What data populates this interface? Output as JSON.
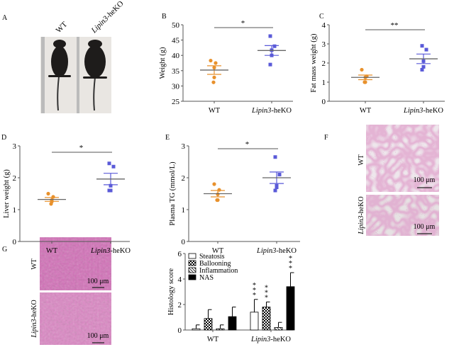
{
  "panel_letters": [
    "A",
    "B",
    "C",
    "D",
    "E",
    "F",
    "G"
  ],
  "groups": [
    "WT",
    "Lipin3-heKO"
  ],
  "colors": {
    "wt": "#e8912c",
    "ko": "#5a5ad8",
    "axis": "#555555",
    "mean": "#666666"
  },
  "panel_a": {
    "labels": [
      "WT",
      "Lipin3-heKO"
    ]
  },
  "panel_f": {
    "row_labels": [
      "WT",
      "Lipin3-heKO"
    ],
    "scale_bar": "100 μm"
  },
  "panel_g": {
    "row_labels": [
      "WT",
      "Lipin3-heKO"
    ],
    "scale_bar": "100 μm"
  },
  "chart_data": [
    {
      "panel": "B",
      "type": "scatter",
      "ylabel": "Weight (g)",
      "ylim": [
        25,
        50
      ],
      "yticks": [
        25,
        30,
        35,
        40,
        45,
        50
      ],
      "categories": [
        "WT",
        "Lipin3-heKO"
      ],
      "significance": "*",
      "series": [
        {
          "name": "WT",
          "values": [
            38.3,
            37.5,
            36.0,
            32.8,
            31.2
          ],
          "mean": 35.2,
          "sem": 1.4
        },
        {
          "name": "Lipin3-heKO",
          "values": [
            46.3,
            43.0,
            41.7,
            40.0,
            37.0
          ],
          "mean": 41.6,
          "sem": 1.6
        }
      ]
    },
    {
      "panel": "C",
      "type": "scatter",
      "ylabel": "Fat mass weight (g)",
      "ylim": [
        0,
        4
      ],
      "yticks": [
        0,
        1,
        2,
        3,
        4
      ],
      "categories": [
        "WT",
        "Lipin3-heKO"
      ],
      "significance": "**",
      "series": [
        {
          "name": "WT",
          "values": [
            1.65,
            1.3,
            1.25,
            1.0,
            1.0
          ],
          "mean": 1.25,
          "sem": 0.12
        },
        {
          "name": "Lipin3-heKO",
          "values": [
            2.9,
            2.7,
            2.1,
            1.8,
            1.65
          ],
          "mean": 2.22,
          "sem": 0.25
        }
      ]
    },
    {
      "panel": "D",
      "type": "scatter",
      "ylabel": "Liver weight (g)",
      "ylim": [
        0,
        3
      ],
      "yticks": [
        0,
        1,
        2,
        3
      ],
      "categories": [
        "WT",
        "Lipin3-heKO"
      ],
      "significance": "*",
      "series": [
        {
          "name": "WT",
          "values": [
            1.5,
            1.4,
            1.3,
            1.25,
            1.18
          ],
          "mean": 1.32,
          "sem": 0.06
        },
        {
          "name": "Lipin3-heKO",
          "values": [
            2.45,
            2.35,
            1.75,
            1.6,
            1.6
          ],
          "mean": 1.96,
          "sem": 0.18
        }
      ]
    },
    {
      "panel": "E",
      "type": "scatter",
      "ylabel": "Plasma TG (mmol/L)",
      "ylim": [
        0,
        3
      ],
      "yticks": [
        0,
        1,
        2,
        3
      ],
      "categories": [
        "WT",
        "Lipin3-heKO"
      ],
      "significance": "*",
      "series": [
        {
          "name": "WT",
          "values": [
            1.8,
            1.62,
            1.48,
            1.3,
            1.3
          ],
          "mean": 1.5,
          "sem": 0.1
        },
        {
          "name": "Lipin3-heKO",
          "values": [
            2.65,
            2.1,
            1.75,
            1.7,
            1.6
          ],
          "mean": 2.0,
          "sem": 0.18
        }
      ]
    },
    {
      "panel": "G",
      "type": "bar",
      "ylabel": "Histology score",
      "ylim": [
        0,
        6
      ],
      "yticks": [
        0,
        2,
        4,
        6
      ],
      "categories": [
        "WT",
        "Lipin3-heKO"
      ],
      "series": [
        {
          "name": "Steatosis",
          "values": [
            0.1,
            1.4
          ],
          "errors": [
            0.3,
            1.0
          ],
          "significance": [
            "",
            "***"
          ]
        },
        {
          "name": "Ballooning",
          "values": [
            0.9,
            1.8
          ],
          "errors": [
            0.7,
            0.4
          ],
          "significance": [
            "",
            "***"
          ]
        },
        {
          "name": "Inflammation",
          "values": [
            0.1,
            0.2
          ],
          "errors": [
            0.3,
            0.4
          ],
          "significance": [
            "",
            ""
          ]
        },
        {
          "name": "NAS",
          "values": [
            1.05,
            3.4
          ],
          "errors": [
            0.75,
            1.1
          ],
          "significance": [
            "",
            "***"
          ]
        }
      ]
    }
  ]
}
